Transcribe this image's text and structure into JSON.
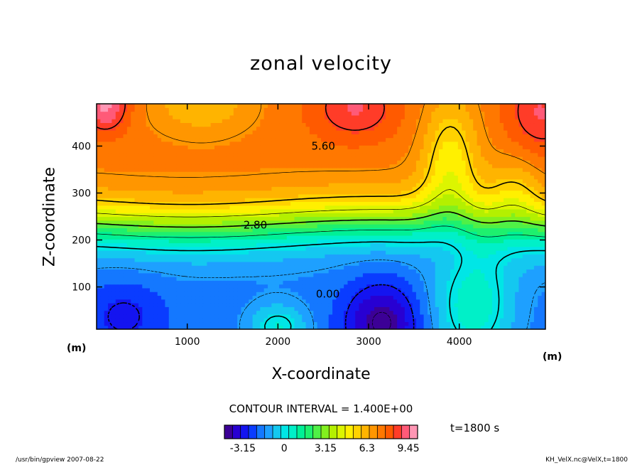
{
  "chart_data": {
    "type": "heatmap",
    "title": "zonal velocity",
    "xlabel": "X-coordinate",
    "ylabel": "Z-coordinate",
    "x_unit": "(m)",
    "y_unit": "(m)",
    "xlim": [
      0,
      4950
    ],
    "ylim": [
      10,
      490
    ],
    "x_ticks": [
      1000,
      2000,
      3000,
      4000
    ],
    "y_ticks": [
      100,
      200,
      300,
      400
    ],
    "contour_interval_text": "CONTOUR INTERVAL = 1.400E+00",
    "contour_labels": [
      {
        "text": "5.60",
        "x": 2500,
        "y": 400
      },
      {
        "text": "2.80",
        "x": 1750,
        "y": 232
      },
      {
        "text": "0.00",
        "x": 2550,
        "y": 85
      }
    ],
    "colorbar": {
      "min": -4.55,
      "max": 10.15,
      "ticks": [
        -3.15,
        0,
        3.15,
        6.3,
        9.45
      ],
      "tick_labels": [
        "-3.15",
        "0",
        "3.15",
        "6.3",
        "9.45"
      ],
      "colors": [
        "#3c0096",
        "#2800d2",
        "#1414f0",
        "#0a3cff",
        "#1478ff",
        "#1ea0ff",
        "#14c8f0",
        "#00e6e6",
        "#00f0c8",
        "#00f096",
        "#1ef06e",
        "#50f046",
        "#82f01e",
        "#b4f000",
        "#dcf500",
        "#fff000",
        "#ffd200",
        "#ffb400",
        "#ff9600",
        "#ff7800",
        "#ff5a00",
        "#ff3c28",
        "#ff5a78",
        "#ff96b4"
      ]
    },
    "time_text": "t=1800 s",
    "grid": false
  },
  "footer": {
    "left": "/usr/bin/gpview   2007-08-22",
    "right": "KH_VelX.nc@VelX,t=1800"
  }
}
